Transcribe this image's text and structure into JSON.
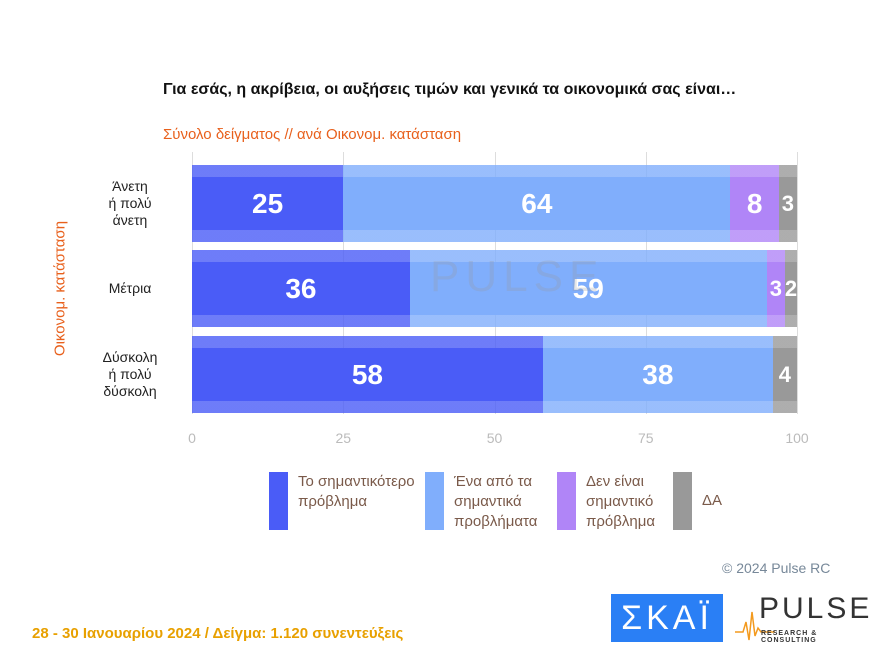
{
  "chart_data": {
    "type": "bar",
    "orientation": "horizontal-stacked",
    "title": "Για εσάς, η ακρίβεια, οι αυξήσεις τιμών και γενικά τα οικονομικά σας είναι…",
    "subtitle": "Σύνολο δείγματος // ανά Οικονομ. κατάσταση",
    "ylabel": "Οικονομ. κατάσταση",
    "categories": [
      "Άνετη ή πολύ άνετη",
      "Μέτρια",
      "Δύσκολη ή πολύ δύσκολη"
    ],
    "series": [
      {
        "name": "Το σημαντικότερο πρόβλημα",
        "color": "#4a5cf7",
        "values": [
          25,
          36,
          58
        ]
      },
      {
        "name": "Ένα από τα σημαντικά προβλήματα",
        "color": "#80aefc",
        "values": [
          64,
          59,
          38
        ]
      },
      {
        "name": "Δεν είναι σημαντικό πρόβλημα",
        "color": "#b085f7",
        "values": [
          8,
          3,
          0
        ]
      },
      {
        "name": "ΔΑ",
        "color": "#999999",
        "values": [
          3,
          2,
          4
        ]
      }
    ],
    "xlim": [
      0,
      100
    ],
    "xticks": [
      "0",
      "25",
      "50",
      "75",
      "100"
    ],
    "grid": true,
    "legend": "bottom"
  },
  "watermark": "PULSE",
  "copyright": "© 2024 Pulse RC",
  "footer": "28 - 30  Ιανουαρίου  2024  /  Δείγμα:  1.120 συνεντεύξεις",
  "logos": {
    "skai": "ΣΚΑΪ",
    "pulse": "PULSE",
    "pulse_sub": "RESEARCH & CONSULTING"
  }
}
